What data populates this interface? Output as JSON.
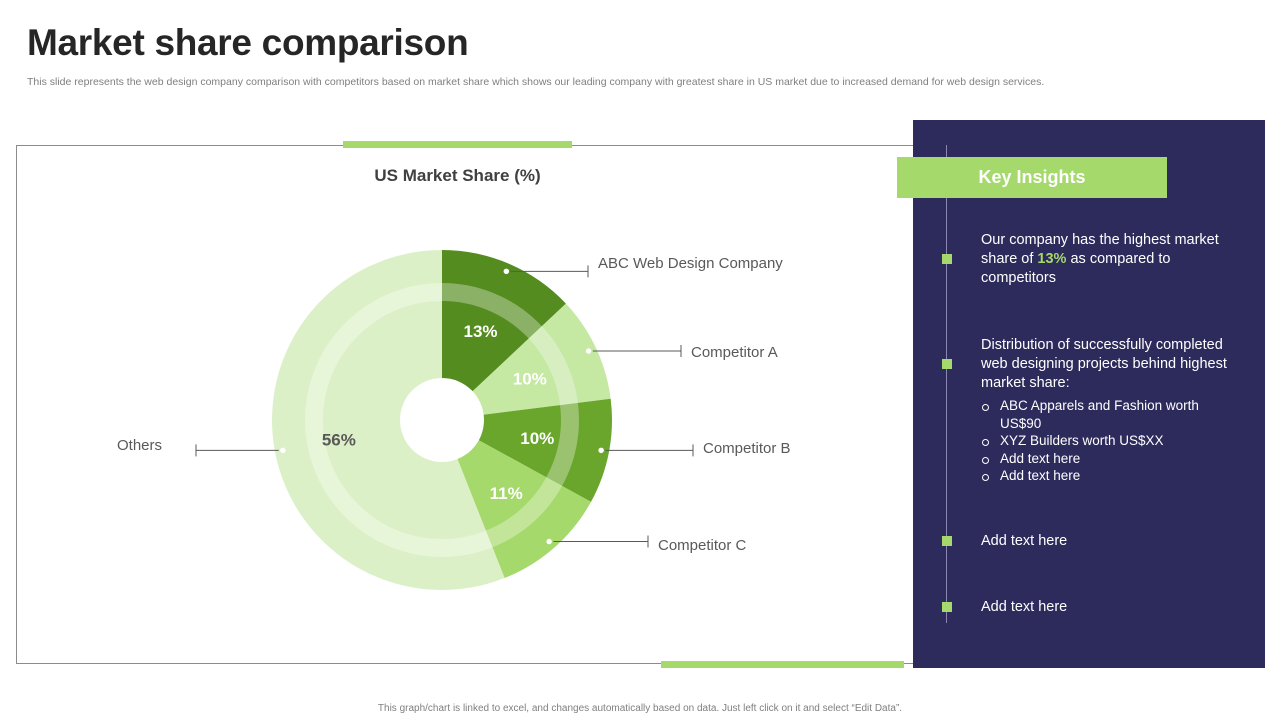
{
  "header": {
    "title": "Market share comparison",
    "subtitle": "This slide represents the web design company comparison with competitors based on market share which shows our leading company with greatest share in US market due to increased demand for web design services."
  },
  "chart_data": {
    "type": "pie",
    "title": "US Market Share (%)",
    "unit": "%",
    "slices": [
      {
        "name": "ABC Web Design Company",
        "value": 13,
        "label": "13%",
        "color": "#548c1f",
        "label_color": "#ffffff"
      },
      {
        "name": "Competitor A",
        "value": 10,
        "label": "10%",
        "color": "#c5e8a3",
        "label_color": "#ffffff"
      },
      {
        "name": "Competitor B",
        "value": 10,
        "label": "10%",
        "color": "#6aa62c",
        "label_color": "#ffffff"
      },
      {
        "name": "Competitor C",
        "value": 11,
        "label": "11%",
        "color": "#a5d96b",
        "label_color": "#ffffff"
      },
      {
        "name": "Others",
        "value": 56,
        "label": "56%",
        "color": "#dcf0c8",
        "label_color": "#595959"
      }
    ]
  },
  "insights": {
    "heading": "Key Insights",
    "item1": {
      "before": "Our company has the highest market share of ",
      "highlight": "13%",
      "after": " as compared to competitors"
    },
    "item2": {
      "text": "Distribution of successfully completed web designing projects behind highest market share:",
      "bullets": [
        "ABC Apparels and Fashion worth US$90",
        "XYZ Builders worth US$XX",
        "Add text here",
        "Add text here"
      ]
    },
    "item3": "Add text here",
    "item4": "Add text here"
  },
  "footnote": "This graph/chart is linked to excel, and changes automatically based on data. Just left click on it and select “Edit Data”.",
  "colors": {
    "accent": "#a5d96b",
    "panel": "#2d2a5c",
    "dark_green": "#548c1f"
  }
}
